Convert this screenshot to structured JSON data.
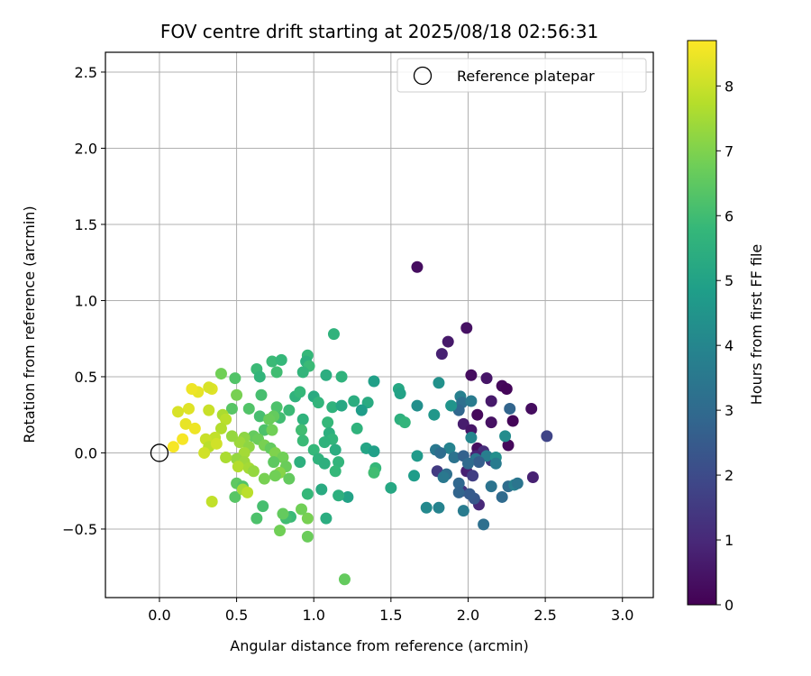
{
  "chart_data": {
    "type": "scatter",
    "title": "FOV centre drift starting at 2025/08/18 02:56:31",
    "xlabel": "Angular distance from reference (arcmin)",
    "ylabel": "Rotation from reference (arcmin)",
    "xlim": [
      -0.35,
      3.2
    ],
    "ylim": [
      -0.95,
      2.63
    ],
    "xticks": [
      0.0,
      0.5,
      1.0,
      1.5,
      2.0,
      2.5,
      3.0
    ],
    "xtick_labels": [
      "0.0",
      "0.5",
      "1.0",
      "1.5",
      "2.0",
      "2.5",
      "3.0"
    ],
    "yticks": [
      -0.5,
      0.0,
      0.5,
      1.0,
      1.5,
      2.0,
      2.5
    ],
    "ytick_labels": [
      "−0.5",
      "0.0",
      "0.5",
      "1.0",
      "1.5",
      "2.0",
      "2.5"
    ],
    "grid": true,
    "legend": {
      "placement": "top-right",
      "entries": [
        {
          "label": "Reference platepar",
          "marker": "open-circle"
        }
      ]
    },
    "reference_point": {
      "x": 0.0,
      "y": 0.0
    },
    "colorbar": {
      "label": "Hours from first FF file",
      "range": [
        0,
        8.7
      ],
      "ticks": [
        0,
        1,
        2,
        3,
        4,
        5,
        6,
        7,
        8
      ],
      "tick_labels": [
        "0",
        "1",
        "2",
        "3",
        "4",
        "5",
        "6",
        "7",
        "8"
      ],
      "colormap": "viridis",
      "stops": [
        "#440154",
        "#482878",
        "#3e4989",
        "#31688e",
        "#26828e",
        "#1f9e89",
        "#35b779",
        "#6ece58",
        "#b5de2b",
        "#fde725"
      ]
    },
    "points": [
      {
        "x": 1.67,
        "y": 1.22,
        "h": 0.3
      },
      {
        "x": 1.99,
        "y": 0.82,
        "h": 0.4
      },
      {
        "x": 1.87,
        "y": 0.73,
        "h": 0.6
      },
      {
        "x": 1.83,
        "y": 0.65,
        "h": 0.8
      },
      {
        "x": 2.02,
        "y": 0.51,
        "h": 0.3
      },
      {
        "x": 2.12,
        "y": 0.49,
        "h": 0.5
      },
      {
        "x": 2.22,
        "y": 0.44,
        "h": 0.2
      },
      {
        "x": 2.25,
        "y": 0.42,
        "h": 0.1
      },
      {
        "x": 2.15,
        "y": 0.34,
        "h": 0.6
      },
      {
        "x": 2.41,
        "y": 0.29,
        "h": 0.3
      },
      {
        "x": 2.06,
        "y": 0.25,
        "h": 0.2
      },
      {
        "x": 2.29,
        "y": 0.21,
        "h": 0.1
      },
      {
        "x": 2.15,
        "y": 0.2,
        "h": 0.4
      },
      {
        "x": 1.97,
        "y": 0.19,
        "h": 0.7
      },
      {
        "x": 2.02,
        "y": 0.15,
        "h": 0.5
      },
      {
        "x": 2.51,
        "y": 0.11,
        "h": 1.8
      },
      {
        "x": 2.26,
        "y": 0.05,
        "h": 0.2
      },
      {
        "x": 2.06,
        "y": 0.03,
        "h": 0.3
      },
      {
        "x": 2.1,
        "y": 0.01,
        "h": 1.1
      },
      {
        "x": 2.05,
        "y": -0.02,
        "h": 0.9
      },
      {
        "x": 2.15,
        "y": -0.05,
        "h": 1.4
      },
      {
        "x": 1.99,
        "y": -0.12,
        "h": 0.8
      },
      {
        "x": 2.03,
        "y": -0.15,
        "h": 1.6
      },
      {
        "x": 1.8,
        "y": -0.12,
        "h": 1.5
      },
      {
        "x": 2.42,
        "y": -0.16,
        "h": 0.8
      },
      {
        "x": 2.07,
        "y": -0.34,
        "h": 1.0
      },
      {
        "x": 1.96,
        "y": -0.25,
        "h": 1.3
      },
      {
        "x": 2.04,
        "y": -0.3,
        "h": 2.4
      },
      {
        "x": 2.01,
        "y": -0.27,
        "h": 2.5
      },
      {
        "x": 2.27,
        "y": 0.29,
        "h": 2.8
      },
      {
        "x": 1.95,
        "y": 0.37,
        "h": 3.8
      },
      {
        "x": 1.96,
        "y": 0.33,
        "h": 3.2
      },
      {
        "x": 2.02,
        "y": 0.34,
        "h": 3.6
      },
      {
        "x": 1.94,
        "y": 0.28,
        "h": 2.9
      },
      {
        "x": 2.24,
        "y": 0.11,
        "h": 4.2
      },
      {
        "x": 2.02,
        "y": 0.1,
        "h": 4.0
      },
      {
        "x": 1.79,
        "y": 0.02,
        "h": 3.5
      },
      {
        "x": 1.88,
        "y": 0.03,
        "h": 3.9
      },
      {
        "x": 1.82,
        "y": 0.0,
        "h": 3.1
      },
      {
        "x": 1.91,
        "y": -0.03,
        "h": 3.3
      },
      {
        "x": 1.97,
        "y": -0.02,
        "h": 2.7
      },
      {
        "x": 2.05,
        "y": -0.04,
        "h": 3.4
      },
      {
        "x": 2.12,
        "y": -0.02,
        "h": 3.7
      },
      {
        "x": 2.18,
        "y": -0.03,
        "h": 4.3
      },
      {
        "x": 2.07,
        "y": -0.06,
        "h": 2.6
      },
      {
        "x": 2.0,
        "y": -0.07,
        "h": 3.0
      },
      {
        "x": 2.18,
        "y": -0.07,
        "h": 3.6
      },
      {
        "x": 1.86,
        "y": -0.14,
        "h": 3.2
      },
      {
        "x": 1.84,
        "y": -0.16,
        "h": 3.5
      },
      {
        "x": 1.94,
        "y": -0.2,
        "h": 2.9
      },
      {
        "x": 2.15,
        "y": -0.22,
        "h": 3.3
      },
      {
        "x": 2.26,
        "y": -0.22,
        "h": 3.1
      },
      {
        "x": 2.3,
        "y": -0.21,
        "h": 3.8
      },
      {
        "x": 2.32,
        "y": -0.2,
        "h": 3.4
      },
      {
        "x": 1.94,
        "y": -0.26,
        "h": 2.8
      },
      {
        "x": 2.22,
        "y": -0.29,
        "h": 3.0
      },
      {
        "x": 1.97,
        "y": -0.38,
        "h": 3.6
      },
      {
        "x": 1.81,
        "y": -0.36,
        "h": 3.9
      },
      {
        "x": 1.73,
        "y": -0.36,
        "h": 4.1
      },
      {
        "x": 2.1,
        "y": -0.47,
        "h": 3.2
      },
      {
        "x": 1.81,
        "y": 0.46,
        "h": 4.4
      },
      {
        "x": 1.78,
        "y": 0.25,
        "h": 4.6
      },
      {
        "x": 1.89,
        "y": 0.31,
        "h": 4.5
      },
      {
        "x": 1.67,
        "y": 0.31,
        "h": 4.3
      },
      {
        "x": 1.67,
        "y": -0.02,
        "h": 4.7
      },
      {
        "x": 1.65,
        "y": -0.15,
        "h": 4.8
      },
      {
        "x": 1.55,
        "y": 0.42,
        "h": 5.2
      },
      {
        "x": 1.56,
        "y": 0.39,
        "h": 5.0
      },
      {
        "x": 1.39,
        "y": 0.47,
        "h": 4.9
      },
      {
        "x": 1.35,
        "y": 0.33,
        "h": 5.3
      },
      {
        "x": 1.31,
        "y": 0.28,
        "h": 4.8
      },
      {
        "x": 1.26,
        "y": 0.34,
        "h": 5.4
      },
      {
        "x": 1.28,
        "y": 0.16,
        "h": 5.6
      },
      {
        "x": 1.56,
        "y": 0.22,
        "h": 5.5
      },
      {
        "x": 1.59,
        "y": 0.2,
        "h": 5.7
      },
      {
        "x": 1.34,
        "y": 0.03,
        "h": 5.1
      },
      {
        "x": 1.39,
        "y": 0.01,
        "h": 4.9
      },
      {
        "x": 1.4,
        "y": -0.1,
        "h": 5.8
      },
      {
        "x": 1.39,
        "y": -0.13,
        "h": 6.0
      },
      {
        "x": 1.5,
        "y": -0.23,
        "h": 5.2
      },
      {
        "x": 1.22,
        "y": -0.29,
        "h": 5.0
      },
      {
        "x": 1.16,
        "y": -0.28,
        "h": 5.5
      },
      {
        "x": 1.05,
        "y": -0.24,
        "h": 5.3
      },
      {
        "x": 1.08,
        "y": -0.43,
        "h": 5.4
      },
      {
        "x": 1.13,
        "y": 0.78,
        "h": 5.6
      },
      {
        "x": 0.96,
        "y": 0.64,
        "h": 5.8
      },
      {
        "x": 0.95,
        "y": 0.6,
        "h": 5.5
      },
      {
        "x": 0.97,
        "y": 0.57,
        "h": 5.9
      },
      {
        "x": 0.93,
        "y": 0.53,
        "h": 5.7
      },
      {
        "x": 1.08,
        "y": 0.51,
        "h": 5.4
      },
      {
        "x": 1.18,
        "y": 0.5,
        "h": 5.6
      },
      {
        "x": 1.0,
        "y": 0.37,
        "h": 5.3
      },
      {
        "x": 1.03,
        "y": 0.33,
        "h": 5.7
      },
      {
        "x": 1.12,
        "y": 0.3,
        "h": 5.6
      },
      {
        "x": 1.18,
        "y": 0.31,
        "h": 5.2
      },
      {
        "x": 1.09,
        "y": 0.2,
        "h": 5.8
      },
      {
        "x": 0.93,
        "y": 0.22,
        "h": 5.6
      },
      {
        "x": 1.1,
        "y": 0.13,
        "h": 5.5
      },
      {
        "x": 1.12,
        "y": 0.09,
        "h": 5.7
      },
      {
        "x": 1.07,
        "y": 0.07,
        "h": 5.6
      },
      {
        "x": 1.14,
        "y": 0.02,
        "h": 5.4
      },
      {
        "x": 1.0,
        "y": 0.02,
        "h": 5.8
      },
      {
        "x": 1.03,
        "y": -0.04,
        "h": 5.6
      },
      {
        "x": 1.07,
        "y": -0.07,
        "h": 5.5
      },
      {
        "x": 1.16,
        "y": -0.06,
        "h": 5.7
      },
      {
        "x": 1.14,
        "y": -0.12,
        "h": 5.8
      },
      {
        "x": 0.91,
        "y": -0.06,
        "h": 5.5
      },
      {
        "x": 0.88,
        "y": 0.37,
        "h": 5.6
      },
      {
        "x": 0.91,
        "y": 0.4,
        "h": 5.8
      },
      {
        "x": 0.84,
        "y": 0.28,
        "h": 5.9
      },
      {
        "x": 0.92,
        "y": 0.15,
        "h": 6.0
      },
      {
        "x": 0.93,
        "y": 0.08,
        "h": 5.9
      },
      {
        "x": 0.96,
        "y": -0.27,
        "h": 5.8
      },
      {
        "x": 0.85,
        "y": -0.42,
        "h": 5.9
      },
      {
        "x": 0.82,
        "y": -0.43,
        "h": 6.0
      },
      {
        "x": 0.73,
        "y": 0.6,
        "h": 5.9
      },
      {
        "x": 0.79,
        "y": 0.61,
        "h": 5.8
      },
      {
        "x": 0.76,
        "y": 0.53,
        "h": 6.0
      },
      {
        "x": 0.63,
        "y": 0.55,
        "h": 5.9
      },
      {
        "x": 0.65,
        "y": 0.5,
        "h": 5.7
      },
      {
        "x": 0.66,
        "y": 0.38,
        "h": 6.1
      },
      {
        "x": 0.76,
        "y": 0.3,
        "h": 6.2
      },
      {
        "x": 0.65,
        "y": 0.24,
        "h": 6.1
      },
      {
        "x": 0.78,
        "y": 0.23,
        "h": 6.0
      },
      {
        "x": 0.68,
        "y": 0.15,
        "h": 6.2
      },
      {
        "x": 0.58,
        "y": 0.29,
        "h": 6.3
      },
      {
        "x": 0.47,
        "y": 0.29,
        "h": 6.4
      },
      {
        "x": 0.49,
        "y": 0.49,
        "h": 6.3
      },
      {
        "x": 0.67,
        "y": -0.35,
        "h": 6.1
      },
      {
        "x": 0.63,
        "y": -0.43,
        "h": 6.2
      },
      {
        "x": 0.49,
        "y": -0.29,
        "h": 6.4
      },
      {
        "x": 0.5,
        "y": -0.2,
        "h": 6.5
      },
      {
        "x": 0.54,
        "y": -0.22,
        "h": 6.3
      },
      {
        "x": 0.4,
        "y": 0.52,
        "h": 6.8
      },
      {
        "x": 0.5,
        "y": 0.38,
        "h": 6.9
      },
      {
        "x": 0.74,
        "y": 0.24,
        "h": 6.6
      },
      {
        "x": 0.71,
        "y": 0.22,
        "h": 6.7
      },
      {
        "x": 0.73,
        "y": 0.15,
        "h": 6.8
      },
      {
        "x": 0.61,
        "y": 0.11,
        "h": 6.6
      },
      {
        "x": 0.64,
        "y": 0.09,
        "h": 6.7
      },
      {
        "x": 0.68,
        "y": 0.05,
        "h": 6.9
      },
      {
        "x": 0.72,
        "y": 0.03,
        "h": 6.6
      },
      {
        "x": 0.75,
        "y": 0.0,
        "h": 7.0
      },
      {
        "x": 0.8,
        "y": -0.03,
        "h": 6.8
      },
      {
        "x": 0.74,
        "y": -0.06,
        "h": 6.5
      },
      {
        "x": 0.82,
        "y": -0.09,
        "h": 6.7
      },
      {
        "x": 0.78,
        "y": -0.13,
        "h": 7.1
      },
      {
        "x": 0.84,
        "y": -0.17,
        "h": 6.6
      },
      {
        "x": 0.75,
        "y": -0.15,
        "h": 6.8
      },
      {
        "x": 0.68,
        "y": -0.17,
        "h": 6.9
      },
      {
        "x": 0.8,
        "y": -0.4,
        "h": 6.6
      },
      {
        "x": 0.78,
        "y": -0.51,
        "h": 6.8
      },
      {
        "x": 0.96,
        "y": -0.55,
        "h": 6.7
      },
      {
        "x": 0.96,
        "y": -0.43,
        "h": 6.9
      },
      {
        "x": 0.92,
        "y": -0.37,
        "h": 6.8
      },
      {
        "x": 1.2,
        "y": -0.83,
        "h": 6.6
      },
      {
        "x": 0.55,
        "y": 0.1,
        "h": 7.2
      },
      {
        "x": 0.52,
        "y": 0.07,
        "h": 7.4
      },
      {
        "x": 0.47,
        "y": 0.11,
        "h": 7.3
      },
      {
        "x": 0.58,
        "y": 0.04,
        "h": 7.2
      },
      {
        "x": 0.55,
        "y": 0.0,
        "h": 7.5
      },
      {
        "x": 0.5,
        "y": -0.04,
        "h": 7.3
      },
      {
        "x": 0.43,
        "y": -0.03,
        "h": 7.6
      },
      {
        "x": 0.55,
        "y": -0.06,
        "h": 7.4
      },
      {
        "x": 0.51,
        "y": -0.09,
        "h": 7.7
      },
      {
        "x": 0.58,
        "y": -0.1,
        "h": 7.5
      },
      {
        "x": 0.61,
        "y": -0.12,
        "h": 7.3
      },
      {
        "x": 0.54,
        "y": -0.24,
        "h": 7.5
      },
      {
        "x": 0.57,
        "y": -0.26,
        "h": 7.8
      },
      {
        "x": 0.41,
        "y": 0.25,
        "h": 7.6
      },
      {
        "x": 0.43,
        "y": 0.22,
        "h": 7.8
      },
      {
        "x": 0.4,
        "y": 0.16,
        "h": 7.7
      },
      {
        "x": 0.36,
        "y": 0.1,
        "h": 7.9
      },
      {
        "x": 0.3,
        "y": 0.09,
        "h": 8.0
      },
      {
        "x": 0.32,
        "y": 0.04,
        "h": 7.8
      },
      {
        "x": 0.29,
        "y": 0.0,
        "h": 8.1
      },
      {
        "x": 0.34,
        "y": -0.32,
        "h": 7.9
      },
      {
        "x": 0.32,
        "y": 0.28,
        "h": 8.0
      },
      {
        "x": 0.34,
        "y": 0.42,
        "h": 8.3
      },
      {
        "x": 0.32,
        "y": 0.43,
        "h": 8.2
      },
      {
        "x": 0.25,
        "y": 0.4,
        "h": 8.4
      },
      {
        "x": 0.21,
        "y": 0.42,
        "h": 8.5
      },
      {
        "x": 0.19,
        "y": 0.29,
        "h": 8.3
      },
      {
        "x": 0.12,
        "y": 0.27,
        "h": 8.2
      },
      {
        "x": 0.17,
        "y": 0.19,
        "h": 8.4
      },
      {
        "x": 0.23,
        "y": 0.16,
        "h": 8.5
      },
      {
        "x": 0.15,
        "y": 0.09,
        "h": 8.6
      },
      {
        "x": 0.09,
        "y": 0.04,
        "h": 8.6
      },
      {
        "x": 0.37,
        "y": 0.06,
        "h": 8.1
      }
    ]
  }
}
